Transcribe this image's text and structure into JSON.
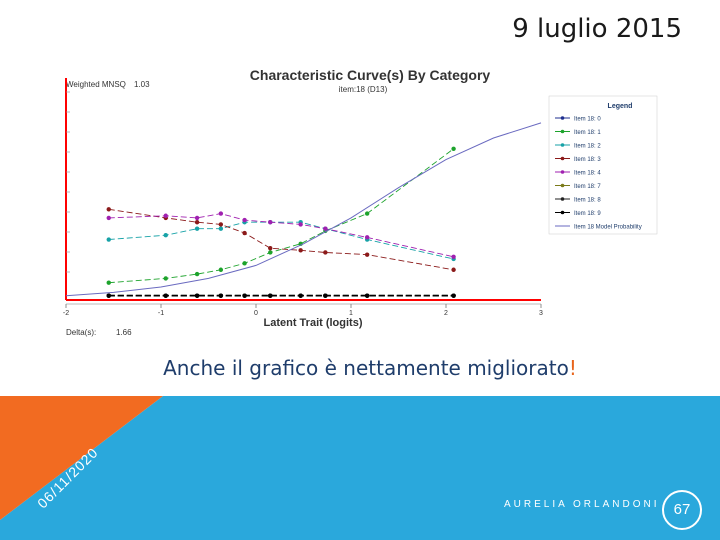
{
  "slide": {
    "title": "9 luglio 2015",
    "caption": "Anche il grafico è nettamente migliorato",
    "caption_mark": "!",
    "footer_date": "06/11/2020",
    "footer_author": "AURELIA ORLANDONI",
    "page_number": "67"
  },
  "colors": {
    "footer_blue": "#2aa8dc",
    "footer_orange": "#f26b21",
    "caption_text": "#1f3d6b",
    "red_line": "#ff0000"
  },
  "chart_data": {
    "type": "line",
    "title": "Characteristic Curve(s) By Category",
    "subtitle": "item:18 (D13)",
    "top_left_label": "Weighted MNSQ",
    "top_left_value": "1.03",
    "bottom_left_label": "Delta(s):",
    "bottom_left_value": "1.66",
    "xlabel": "Latent Trait (logits)",
    "xlim": [
      -2,
      3
    ],
    "ylim": [
      0,
      1
    ],
    "x_ticks": [
      "-2",
      "-1",
      "0",
      "1",
      "2",
      "3"
    ],
    "legend": {
      "title": "Legend",
      "position": "right"
    },
    "grid": false,
    "observed_x": [
      -1.55,
      -0.95,
      -0.62,
      -0.37,
      -0.12,
      0.15,
      0.47,
      0.73,
      1.17,
      2.08
    ],
    "series": [
      {
        "name": "Item 18: 0",
        "color": "#1f2f8f",
        "kind": "observed",
        "y": [
          0.02,
          0.02,
          0.02,
          0.02,
          0.02,
          0.02,
          0.02,
          0.02,
          0.02,
          0.02
        ]
      },
      {
        "name": "Item 18: 1",
        "color": "#1da32c",
        "kind": "observed",
        "y": [
          0.08,
          0.1,
          0.12,
          0.14,
          0.17,
          0.22,
          0.26,
          0.32,
          0.4,
          0.7
        ]
      },
      {
        "name": "Item 18: 2",
        "color": "#17a2a7",
        "kind": "observed",
        "y": [
          0.28,
          0.3,
          0.33,
          0.33,
          0.36,
          0.36,
          0.36,
          0.33,
          0.28,
          0.19
        ]
      },
      {
        "name": "Item 18: 3",
        "color": "#8b1a1a",
        "kind": "observed",
        "y": [
          0.42,
          0.38,
          0.36,
          0.35,
          0.31,
          0.24,
          0.23,
          0.22,
          0.21,
          0.14
        ]
      },
      {
        "name": "Item 18: 4",
        "color": "#a020b0",
        "kind": "observed",
        "y": [
          0.38,
          0.39,
          0.38,
          0.4,
          0.37,
          0.36,
          0.35,
          0.33,
          0.29,
          0.2
        ]
      },
      {
        "name": "Item 18: 7",
        "color": "#7a7a1a",
        "kind": "observed",
        "y": [
          0.02,
          0.02,
          0.02,
          0.02,
          0.02,
          0.02,
          0.02,
          0.02,
          0.02,
          0.02
        ]
      },
      {
        "name": "Item 18: 8",
        "color": "#222222",
        "kind": "observed",
        "y": [
          0.02,
          0.02,
          0.02,
          0.02,
          0.02,
          0.02,
          0.02,
          0.02,
          0.02,
          0.02
        ]
      },
      {
        "name": "Item 18: 9",
        "color": "#000000",
        "kind": "observed",
        "y": [
          0.02,
          0.02,
          0.02,
          0.02,
          0.02,
          0.02,
          0.02,
          0.02,
          0.02,
          0.02
        ]
      },
      {
        "name": "Item 18 Model Probability",
        "color": "#6a6ac0",
        "kind": "model",
        "x": [
          -2.0,
          -1.5,
          -1.0,
          -0.5,
          0.0,
          0.5,
          1.0,
          1.5,
          2.0,
          2.5,
          3.0
        ],
        "y": [
          0.02,
          0.035,
          0.06,
          0.1,
          0.16,
          0.26,
          0.38,
          0.52,
          0.65,
          0.75,
          0.82
        ]
      }
    ]
  }
}
